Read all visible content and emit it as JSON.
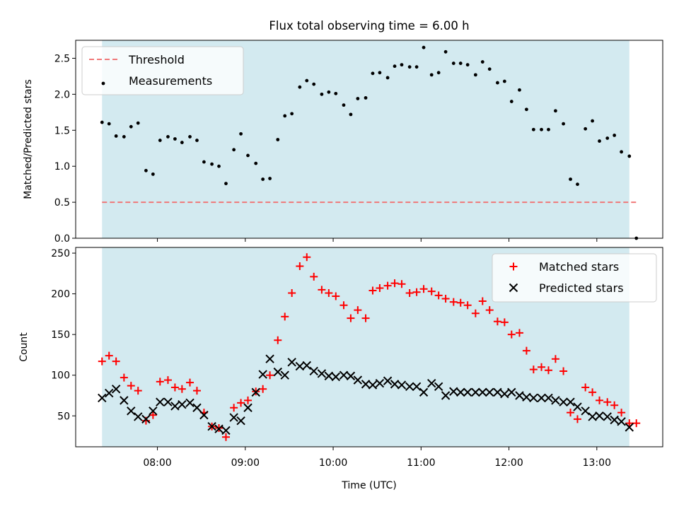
{
  "chart_data": {
    "title": "Flux total observing time = 6.00 h",
    "xlabel": "Time (UTC)",
    "x_ticks": [
      "08:00",
      "09:00",
      "10:00",
      "11:00",
      "12:00",
      "13:00"
    ],
    "x_tick_hours": [
      8,
      9,
      10,
      11,
      12,
      13
    ],
    "xlim_hours": [
      7.07,
      13.75
    ],
    "span_hours": [
      7.37,
      13.37
    ],
    "span_color": "#d3eaf0",
    "panels": [
      {
        "type": "scatter",
        "ylabel": "Matched/Predicted stars",
        "ylim": [
          0,
          2.75
        ],
        "y_ticks": [
          0.0,
          0.5,
          1.0,
          1.5,
          2.0,
          2.5
        ],
        "y_tick_labels": [
          "0.0",
          "0.5",
          "1.0",
          "1.5",
          "2.0",
          "2.5"
        ],
        "legend": "top-left",
        "threshold": {
          "name": "Threshold",
          "value": 0.5,
          "color": "#f07878",
          "x_range_hours": [
            7.37,
            13.45
          ]
        },
        "series": [
          {
            "name": "Measurements",
            "color": "#000000",
            "marker": "dot",
            "x": [
              7.37,
              7.45,
              7.53,
              7.62,
              7.7,
              7.78,
              7.87,
              7.95,
              8.03,
              8.12,
              8.2,
              8.28,
              8.37,
              8.45,
              8.53,
              8.62,
              8.7,
              8.78,
              8.87,
              8.95,
              9.03,
              9.12,
              9.2,
              9.28,
              9.37,
              9.45,
              9.53,
              9.62,
              9.7,
              9.78,
              9.87,
              9.95,
              10.03,
              10.12,
              10.2,
              10.28,
              10.37,
              10.45,
              10.53,
              10.62,
              10.7,
              10.78,
              10.87,
              10.95,
              11.03,
              11.12,
              11.2,
              11.28,
              11.37,
              11.45,
              11.53,
              11.62,
              11.7,
              11.78,
              11.87,
              11.95,
              12.03,
              12.12,
              12.2,
              12.28,
              12.37,
              12.45,
              12.53,
              12.62,
              12.7,
              12.78,
              12.87,
              12.95,
              13.03,
              13.12,
              13.2,
              13.28,
              13.37,
              13.45
            ],
            "y": [
              1.61,
              1.59,
              1.42,
              1.41,
              1.55,
              1.6,
              0.94,
              0.89,
              1.36,
              1.41,
              1.38,
              1.33,
              1.41,
              1.36,
              1.06,
              1.03,
              1.0,
              0.76,
              1.23,
              1.45,
              1.15,
              1.04,
              0.82,
              0.83,
              1.37,
              1.7,
              1.73,
              2.1,
              2.19,
              2.14,
              2.0,
              2.03,
              2.01,
              1.85,
              1.72,
              1.94,
              1.95,
              2.29,
              2.3,
              2.23,
              2.39,
              2.41,
              2.38,
              2.38,
              2.65,
              2.27,
              2.3,
              2.59,
              2.43,
              2.43,
              2.41,
              2.27,
              2.45,
              2.35,
              2.16,
              2.18,
              1.9,
              2.06,
              1.79,
              1.51,
              1.51,
              1.51,
              1.77,
              1.59,
              0.82,
              0.75,
              1.52,
              1.63,
              1.35,
              1.39,
              1.43,
              1.2,
              1.14,
              0.0
            ]
          }
        ]
      },
      {
        "type": "scatter",
        "ylabel": "Count",
        "ylim": [
          12,
          257
        ],
        "y_ticks": [
          50,
          100,
          150,
          200,
          250
        ],
        "y_tick_labels": [
          "50",
          "100",
          "150",
          "200",
          "250"
        ],
        "legend": "top-right",
        "series": [
          {
            "name": "Matched stars",
            "color": "#ff0000",
            "marker": "plus",
            "x": [
              7.37,
              7.45,
              7.53,
              7.62,
              7.7,
              7.78,
              7.87,
              7.95,
              8.03,
              8.12,
              8.2,
              8.28,
              8.37,
              8.45,
              8.53,
              8.62,
              8.7,
              8.78,
              8.87,
              8.95,
              9.03,
              9.12,
              9.2,
              9.28,
              9.37,
              9.45,
              9.53,
              9.62,
              9.7,
              9.78,
              9.87,
              9.95,
              10.03,
              10.12,
              10.2,
              10.28,
              10.37,
              10.45,
              10.53,
              10.62,
              10.7,
              10.78,
              10.87,
              10.95,
              11.03,
              11.12,
              11.2,
              11.28,
              11.37,
              11.45,
              11.53,
              11.62,
              11.7,
              11.78,
              11.87,
              11.95,
              12.03,
              12.12,
              12.2,
              12.28,
              12.37,
              12.45,
              12.53,
              12.62,
              12.7,
              12.78,
              12.87,
              12.95,
              13.03,
              13.12,
              13.2,
              13.28,
              13.37,
              13.45
            ],
            "y": [
              117,
              124,
              117,
              97,
              87,
              81,
              44,
              51,
              92,
              94,
              85,
              83,
              91,
              81,
              54,
              37,
              35,
              24,
              60,
              66,
              69,
              80,
              83,
              100,
              143,
              172,
              201,
              234,
              245,
              221,
              205,
              201,
              197,
              186,
              170,
              180,
              170,
              204,
              207,
              210,
              213,
              212,
              201,
              202,
              206,
              203,
              198,
              194,
              190,
              189,
              186,
              176,
              191,
              180,
              166,
              165,
              150,
              152,
              130,
              107,
              110,
              106,
              120,
              105,
              54,
              46,
              85,
              79,
              69,
              67,
              63,
              54,
              41,
              41
            ]
          },
          {
            "name": "Predicted stars",
            "color": "#000000",
            "marker": "cross",
            "x": [
              7.37,
              7.45,
              7.53,
              7.62,
              7.7,
              7.78,
              7.87,
              7.95,
              8.03,
              8.12,
              8.2,
              8.28,
              8.37,
              8.45,
              8.53,
              8.62,
              8.7,
              8.78,
              8.87,
              8.95,
              9.03,
              9.12,
              9.2,
              9.28,
              9.37,
              9.45,
              9.53,
              9.62,
              9.7,
              9.78,
              9.87,
              9.95,
              10.03,
              10.12,
              10.2,
              10.28,
              10.37,
              10.45,
              10.53,
              10.62,
              10.7,
              10.78,
              10.87,
              10.95,
              11.03,
              11.12,
              11.2,
              11.28,
              11.37,
              11.45,
              11.53,
              11.62,
              11.7,
              11.78,
              11.87,
              11.95,
              12.03,
              12.12,
              12.2,
              12.28,
              12.37,
              12.45,
              12.53,
              12.62,
              12.7,
              12.78,
              12.87,
              12.95,
              13.03,
              13.12,
              13.2,
              13.28,
              13.37
            ],
            "y": [
              72,
              78,
              83,
              69,
              56,
              49,
              46,
              56,
              67,
              67,
              62,
              64,
              66,
              60,
              51,
              37,
              34,
              32,
              48,
              44,
              60,
              79,
              101,
              120,
              104,
              100,
              116,
              111,
              112,
              105,
              102,
              99,
              98,
              100,
              99,
              94,
              89,
              88,
              90,
              93,
              89,
              88,
              86,
              86,
              79,
              90,
              86,
              75,
              80,
              79,
              79,
              79,
              79,
              79,
              79,
              77,
              79,
              75,
              73,
              72,
              72,
              72,
              69,
              67,
              67,
              61,
              56,
              49,
              50,
              49,
              45,
              43,
              36
            ]
          }
        ]
      }
    ]
  }
}
